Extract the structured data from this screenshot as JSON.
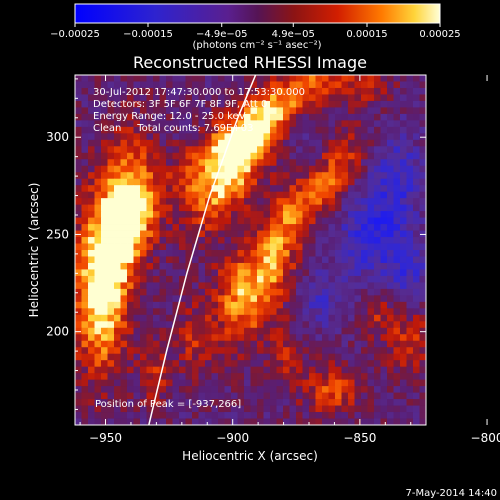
{
  "chart_data": {
    "type": "heatmap",
    "title": "Reconstructed RHESSI Image",
    "xlabel": "Heliocentric X (arcsec)",
    "ylabel": "Heliocentric Y (arcsec)",
    "xlim": [
      -962,
      -824
    ],
    "ylim": [
      152,
      332
    ],
    "x_ticks": [
      -950,
      -900,
      -850,
      -800
    ],
    "x_tick_labels": [
      "−950",
      "−900",
      "−850",
      "−800"
    ],
    "y_ticks": [
      200,
      250,
      300
    ],
    "y_tick_labels": [
      "200",
      "250",
      "300"
    ],
    "annotations": [
      "30-Jul-2012 17:47:30.000 to 17:53:30.000",
      "Detectors: 3F 5F 6F 7F 8F 9F, Att 0",
      "Energy Range: 12.0 - 25.0 keV",
      "Clean     Total counts: 7.69E+03"
    ],
    "peak_label": "Position of Peak = [-937,266]",
    "peak": [
      -937,
      266
    ],
    "colorbar": {
      "vmin": -0.00025,
      "vmax": 0.00025,
      "tick_values": [
        -0.00025,
        -0.00015,
        -4.9e-05,
        4.9e-05,
        0.00015,
        0.00025
      ],
      "tick_labels": [
        "−0.00025",
        "−0.00015",
        "−4.9e−05",
        "4.9e−05",
        "0.00015",
        "0.00025"
      ],
      "unit_label": "(photons cm⁻² s⁻¹ asec⁻²)"
    },
    "limb_curve": [
      [
        -933,
        152
      ],
      [
        -926,
        190
      ],
      [
        -918,
        230
      ],
      [
        -909,
        270
      ],
      [
        -898,
        310
      ],
      [
        -891,
        332
      ]
    ],
    "colors": {
      "limb": "#ffffff",
      "background": "#000000"
    }
  },
  "footer": {
    "date": "7-May-2014 14:40"
  }
}
